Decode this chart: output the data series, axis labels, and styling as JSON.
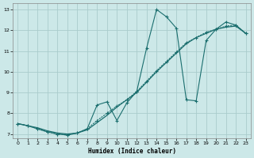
{
  "xlabel": "Humidex (Indice chaleur)",
  "xlim": [
    -0.5,
    23.5
  ],
  "ylim": [
    6.8,
    13.3
  ],
  "xticks": [
    0,
    1,
    2,
    3,
    4,
    5,
    6,
    7,
    8,
    9,
    10,
    11,
    12,
    13,
    14,
    15,
    16,
    17,
    18,
    19,
    20,
    21,
    22,
    23
  ],
  "yticks": [
    7,
    8,
    9,
    10,
    11,
    12,
    13
  ],
  "bg_color": "#cce8e8",
  "grid_color": "#aacccc",
  "line_color": "#1a6e6e",
  "line1_y": [
    7.5,
    7.4,
    7.3,
    7.15,
    7.05,
    7.0,
    7.05,
    7.2,
    7.55,
    7.9,
    8.3,
    8.65,
    9.0,
    9.5,
    10.0,
    10.45,
    10.9,
    11.35,
    11.65,
    11.85,
    12.05,
    12.15,
    12.2,
    11.85
  ],
  "line2_y": [
    7.5,
    7.4,
    7.25,
    7.1,
    7.0,
    6.95,
    7.05,
    7.25,
    7.65,
    8.0,
    8.35,
    8.65,
    9.05,
    9.55,
    10.05,
    10.5,
    10.95,
    11.4,
    11.65,
    11.9,
    12.05,
    12.2,
    12.25,
    11.85
  ],
  "line3_y": [
    7.5,
    7.4,
    7.25,
    7.1,
    7.0,
    6.95,
    7.05,
    7.25,
    8.4,
    8.55,
    7.65,
    8.5,
    9.05,
    11.15,
    13.0,
    12.65,
    12.1,
    8.65,
    8.6,
    11.5,
    12.05,
    12.4,
    12.25,
    11.85
  ]
}
